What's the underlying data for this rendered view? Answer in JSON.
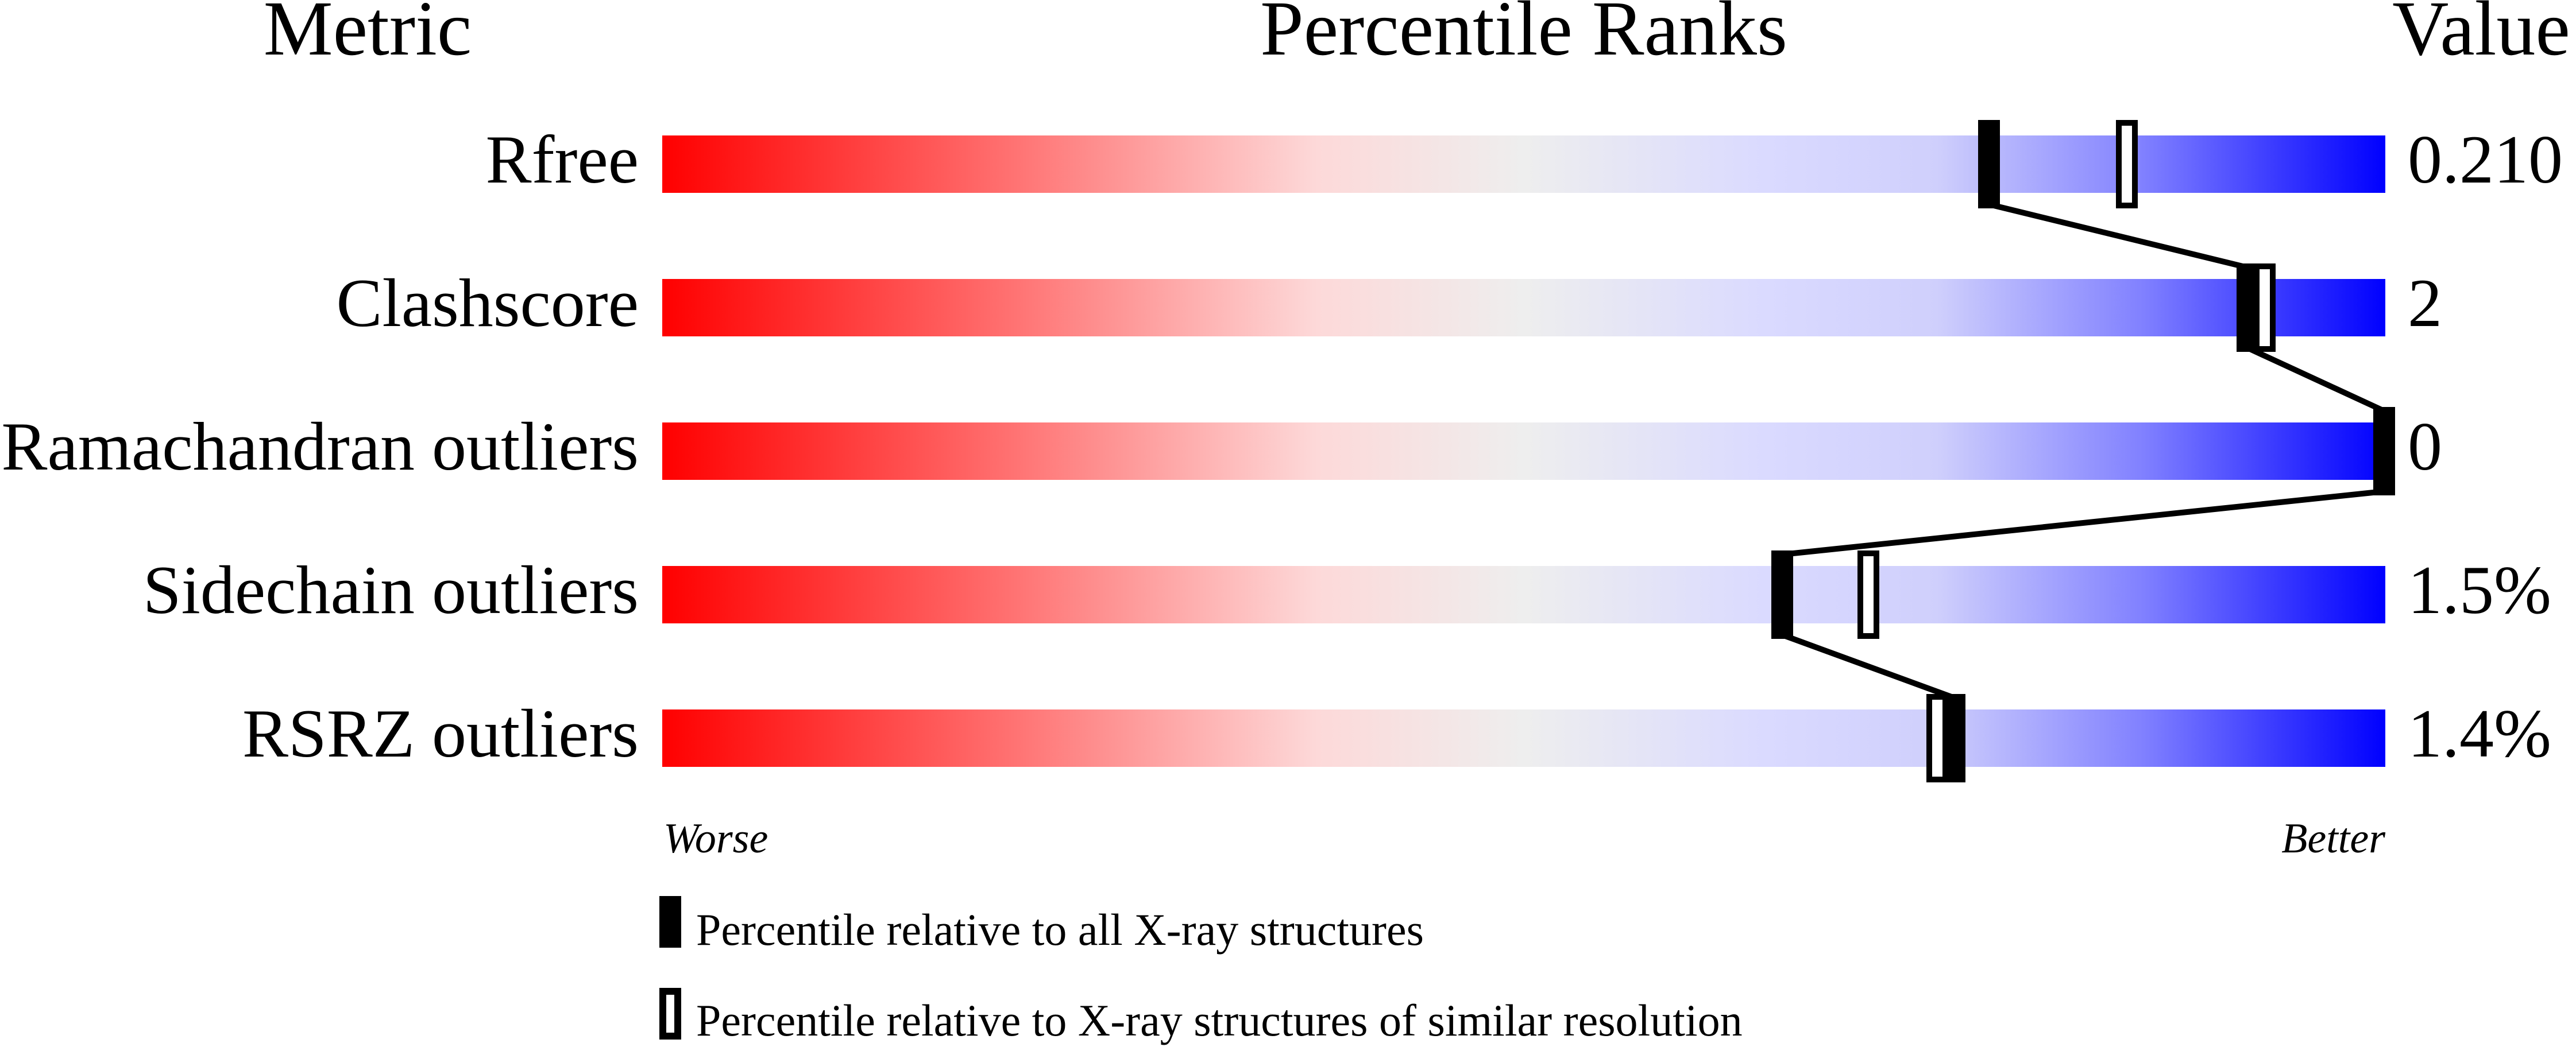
{
  "chart_data": {
    "type": "bar",
    "headers": {
      "metric": "Metric",
      "percentile": "Percentile Ranks",
      "value": "Value"
    },
    "xlim": [
      0,
      100
    ],
    "axis_labels": {
      "left": "Worse",
      "right": "Better"
    },
    "gradient_colors": [
      "#ff0000",
      "#eeeeee",
      "#0000ff"
    ],
    "rows": [
      {
        "metric": "Rfree",
        "value": "0.210",
        "percentile_all": 77,
        "percentile_similar": 85
      },
      {
        "metric": "Clashscore",
        "value": "2",
        "percentile_all": 92,
        "percentile_similar": 93
      },
      {
        "metric": "Ramachandran outliers",
        "value": "0",
        "percentile_all": 100,
        "percentile_similar": 100
      },
      {
        "metric": "Sidechain outliers",
        "value": "1.5%",
        "percentile_all": 65,
        "percentile_similar": 70
      },
      {
        "metric": "RSRZ outliers",
        "value": "1.4%",
        "percentile_all": 75,
        "percentile_similar": 74
      }
    ],
    "legend": [
      {
        "marker": "filled",
        "label": "Percentile relative to all X-ray structures"
      },
      {
        "marker": "open",
        "label": "Percentile relative to X-ray structures of similar resolution"
      }
    ]
  }
}
